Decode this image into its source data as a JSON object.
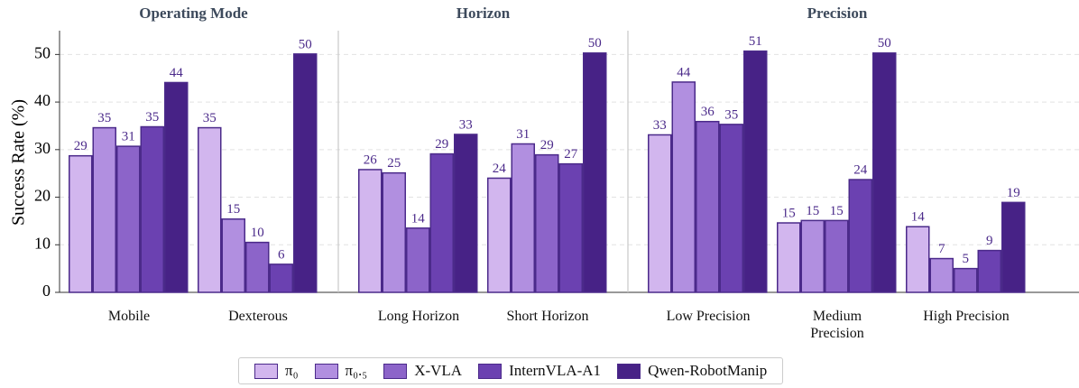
{
  "chart_data": {
    "type": "bar",
    "y_label": "Success Rate (%)",
    "ylim": [
      0,
      55
    ],
    "yticks": [
      0,
      10,
      20,
      30,
      40,
      50
    ],
    "grid": true,
    "legend": "bottom",
    "groups": [
      {
        "title": "Operating Mode",
        "categories": [
          "Mobile",
          "Dexterous"
        ]
      },
      {
        "title": "Horizon",
        "categories": [
          "Long Horizon",
          "Short Horizon"
        ]
      },
      {
        "title": "Precision",
        "categories": [
          "Low Precision",
          "Medium Precision",
          "High Precision"
        ]
      }
    ],
    "series": [
      {
        "name": "π₀",
        "color": "#d2b6ee",
        "values": [
          28.7,
          34.6,
          25.8,
          24.0,
          33.1,
          14.6,
          13.8
        ],
        "value_labels": [
          "29",
          "35",
          "26",
          "24",
          "33",
          "15",
          "14"
        ]
      },
      {
        "name": "π₀.₅",
        "color": "#b18fe0",
        "values": [
          34.6,
          15.4,
          25.1,
          31.2,
          44.2,
          15.1,
          7.1
        ],
        "value_labels": [
          "35",
          "15",
          "25",
          "31",
          "44",
          "15",
          "7"
        ]
      },
      {
        "name": "X-VLA",
        "color": "#8c64c9",
        "values": [
          30.7,
          10.5,
          13.5,
          28.9,
          35.9,
          15.1,
          5.0
        ],
        "value_labels": [
          "31",
          "10",
          "14",
          "29",
          "36",
          "15",
          "5"
        ]
      },
      {
        "name": "InternVLA-A1",
        "color": "#6b41b1",
        "values": [
          34.8,
          5.9,
          29.1,
          27.0,
          35.3,
          23.7,
          8.8
        ],
        "value_labels": [
          "35",
          "6",
          "29",
          "27",
          "35",
          "24",
          "9"
        ]
      },
      {
        "name": "Qwen-RobotManip",
        "color": "#472286",
        "values": [
          44.1,
          50.1,
          33.2,
          50.3,
          50.7,
          50.3,
          18.9
        ],
        "value_labels": [
          "44",
          "50",
          "33",
          "50",
          "51",
          "50",
          "19"
        ]
      }
    ]
  }
}
